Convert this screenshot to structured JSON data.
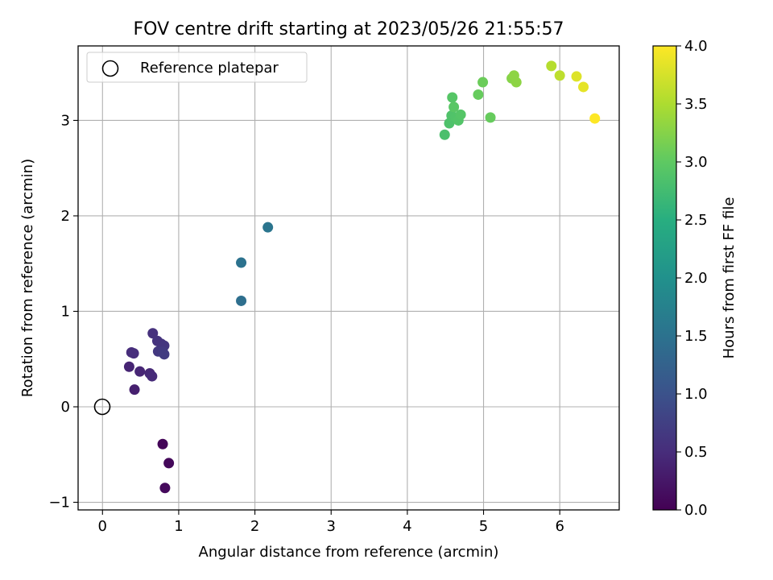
{
  "chart_data": {
    "type": "scatter",
    "title": "FOV centre drift starting at 2023/05/26 21:55:57",
    "xlabel": "Angular distance from reference (arcmin)",
    "ylabel": "Rotation from reference (arcmin)",
    "xlim": [
      -0.32,
      6.78
    ],
    "ylim": [
      -1.08,
      3.78
    ],
    "xticks": [
      0,
      1,
      2,
      3,
      4,
      5,
      6
    ],
    "xtick_labels": [
      "0",
      "1",
      "2",
      "3",
      "4",
      "5",
      "6"
    ],
    "yticks": [
      -1,
      0,
      1,
      2,
      3
    ],
    "ytick_labels": [
      "−1",
      "0",
      "1",
      "2",
      "3"
    ],
    "grid": true,
    "legend": {
      "placement": "top-left",
      "label": "Reference platepar",
      "marker": "open-circle"
    },
    "reference_point": {
      "x": 0,
      "y": 0
    },
    "colorbar": {
      "label": "Hours from first FF file",
      "colormap": "viridis",
      "range": [
        0.0,
        4.0
      ],
      "ticks": [
        0.0,
        0.5,
        1.0,
        1.5,
        2.0,
        2.5,
        3.0,
        3.5,
        4.0
      ],
      "tick_labels": [
        "0.0",
        "0.5",
        "1.0",
        "1.5",
        "2.0",
        "2.5",
        "3.0",
        "3.5",
        "4.0"
      ]
    },
    "points": [
      {
        "x": 0.79,
        "y": -0.39,
        "hours": 0.05
      },
      {
        "x": 0.87,
        "y": -0.59,
        "hours": 0.08
      },
      {
        "x": 0.82,
        "y": -0.85,
        "hours": 0.1
      },
      {
        "x": 0.42,
        "y": 0.18,
        "hours": 0.35
      },
      {
        "x": 0.35,
        "y": 0.42,
        "hours": 0.4
      },
      {
        "x": 0.49,
        "y": 0.37,
        "hours": 0.42
      },
      {
        "x": 0.62,
        "y": 0.35,
        "hours": 0.45
      },
      {
        "x": 0.65,
        "y": 0.32,
        "hours": 0.48
      },
      {
        "x": 0.38,
        "y": 0.57,
        "hours": 0.5
      },
      {
        "x": 0.41,
        "y": 0.56,
        "hours": 0.52
      },
      {
        "x": 0.66,
        "y": 0.77,
        "hours": 0.55
      },
      {
        "x": 0.72,
        "y": 0.69,
        "hours": 0.58
      },
      {
        "x": 0.77,
        "y": 0.66,
        "hours": 0.6
      },
      {
        "x": 0.81,
        "y": 0.64,
        "hours": 0.62
      },
      {
        "x": 0.73,
        "y": 0.58,
        "hours": 0.65
      },
      {
        "x": 0.79,
        "y": 0.58,
        "hours": 0.68
      },
      {
        "x": 0.81,
        "y": 0.55,
        "hours": 0.7
      },
      {
        "x": 1.82,
        "y": 1.11,
        "hours": 1.45
      },
      {
        "x": 1.82,
        "y": 1.51,
        "hours": 1.5
      },
      {
        "x": 2.17,
        "y": 1.88,
        "hours": 1.55
      },
      {
        "x": 4.49,
        "y": 2.85,
        "hours": 2.82
      },
      {
        "x": 4.55,
        "y": 2.97,
        "hours": 2.85
      },
      {
        "x": 4.58,
        "y": 3.05,
        "hours": 2.87
      },
      {
        "x": 4.63,
        "y": 3.03,
        "hours": 2.88
      },
      {
        "x": 4.67,
        "y": 3.0,
        "hours": 2.9
      },
      {
        "x": 4.7,
        "y": 3.06,
        "hours": 2.92
      },
      {
        "x": 4.59,
        "y": 3.24,
        "hours": 2.93
      },
      {
        "x": 4.61,
        "y": 3.14,
        "hours": 2.95
      },
      {
        "x": 5.09,
        "y": 3.03,
        "hours": 3.05
      },
      {
        "x": 4.93,
        "y": 3.27,
        "hours": 3.05
      },
      {
        "x": 4.99,
        "y": 3.4,
        "hours": 3.08
      },
      {
        "x": 5.37,
        "y": 3.44,
        "hours": 3.25
      },
      {
        "x": 5.4,
        "y": 3.47,
        "hours": 3.3
      },
      {
        "x": 5.43,
        "y": 3.4,
        "hours": 3.3
      },
      {
        "x": 5.89,
        "y": 3.57,
        "hours": 3.55
      },
      {
        "x": 6.0,
        "y": 3.47,
        "hours": 3.6
      },
      {
        "x": 6.22,
        "y": 3.46,
        "hours": 3.8
      },
      {
        "x": 6.31,
        "y": 3.35,
        "hours": 3.85
      },
      {
        "x": 6.46,
        "y": 3.02,
        "hours": 4.0
      }
    ]
  }
}
